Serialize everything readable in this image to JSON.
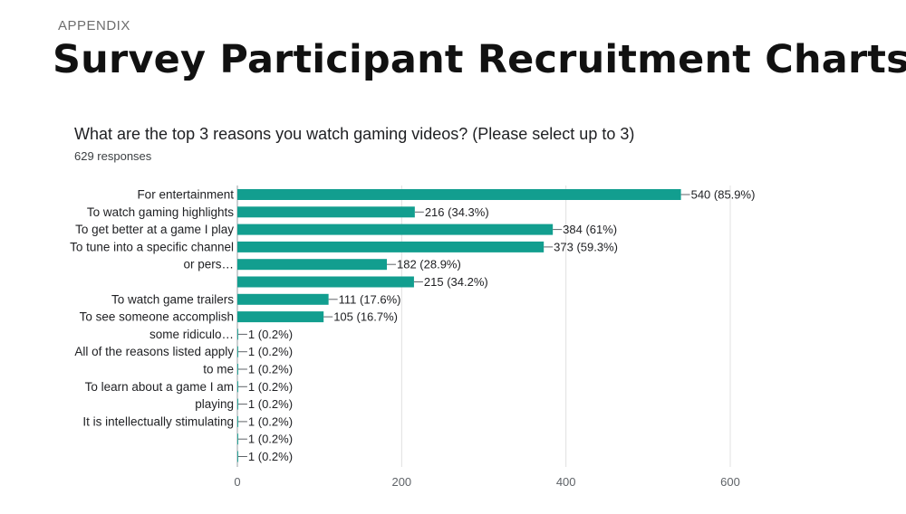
{
  "header": {
    "eyebrow": "APPENDIX",
    "title": "Survey Participant Recruitment Charts"
  },
  "colors": {
    "bar": "#129e8f",
    "grid": "#e0e0e0",
    "axis": "#9aa0a6",
    "text": "#202124"
  },
  "chart_data": {
    "type": "bar",
    "orientation": "horizontal",
    "title": "What are the top 3 reasons you watch gaming videos? (Please select up to 3)",
    "subtitle": "629 responses",
    "xlim": [
      0,
      600
    ],
    "x_ticks": [
      0,
      200,
      400,
      600
    ],
    "grid": true,
    "category_labels": [
      {
        "lines": [
          "For entertainment"
        ],
        "row": 0
      },
      {
        "lines": [
          "To watch gaming highlights"
        ],
        "row": 1
      },
      {
        "lines": [
          "To get better at a game I play"
        ],
        "row": 2
      },
      {
        "lines": [
          "To tune into a specific channel",
          "or pers…"
        ],
        "row": 3.5
      },
      {
        "lines": [
          "To watch game trailers"
        ],
        "row": 6
      },
      {
        "lines": [
          "To see someone accomplish",
          "some ridiculo…"
        ],
        "row": 7.5
      },
      {
        "lines": [
          "All of the reasons listed apply",
          "to me"
        ],
        "row": 9.5
      },
      {
        "lines": [
          "To learn about a game I am",
          "playing"
        ],
        "row": 11.5
      },
      {
        "lines": [
          "It is intellectually stimulating"
        ],
        "row": 13
      }
    ],
    "values": [
      540,
      216,
      384,
      373,
      182,
      215,
      111,
      105,
      1,
      1,
      1,
      1,
      1,
      1,
      1,
      1
    ],
    "data_labels": [
      "540 (85.9%)",
      "216 (34.3%)",
      "384 (61%)",
      "373 (59.3%)",
      "182 (28.9%)",
      "215 (34.2%)",
      "111 (17.6%)",
      "105 (16.7%)",
      "1 (0.2%)",
      "1 (0.2%)",
      "1 (0.2%)",
      "1 (0.2%)",
      "1 (0.2%)",
      "1 (0.2%)",
      "1 (0.2%)",
      "1 (0.2%)"
    ]
  }
}
